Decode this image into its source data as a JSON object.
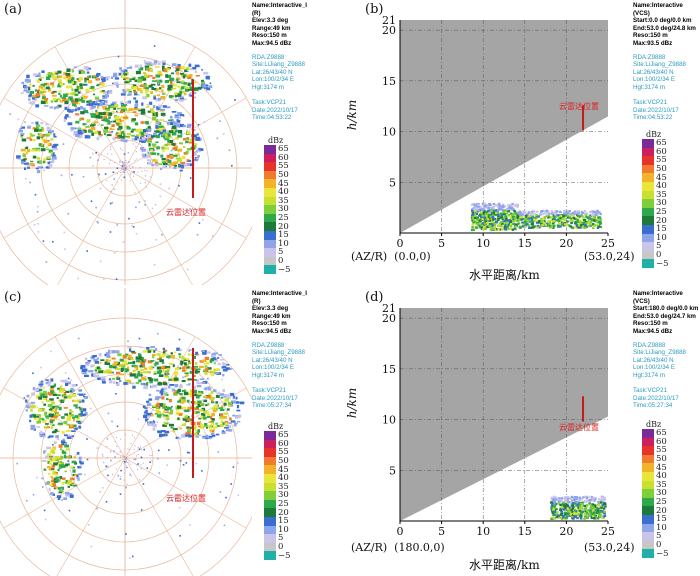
{
  "panels": [
    {
      "id": "a",
      "label": "(a)",
      "kind": "ppi",
      "marker_label": "云雷达位置",
      "info_black": [
        "Name:Interactive_I",
        "(R)",
        "Elev:3.3 deg",
        "Range:49 km",
        "Reso:150 m",
        "Max:94.5 dBz"
      ],
      "info_cyan": [
        "RDA:Z9888",
        "Site:LiJiang_Z9888",
        "Lat:26/43/40 N",
        "Lon:100/2/34 E",
        "Hgt:3174 m",
        "",
        "Task:VCP21",
        "Date:2022/10/17",
        "Time:04:53:22"
      ]
    },
    {
      "id": "b",
      "label": "(b)",
      "kind": "vcs",
      "marker_label": "云雷达位置",
      "info_black": [
        "Name:Interactive",
        "(VCS)",
        "Start:0.0 deg/0.0 km",
        "End:53.0 deg/24.8 km",
        "Reso:150 m",
        "Max:93.5 dBz"
      ],
      "info_cyan": [
        "RDA:Z9888",
        "Site:LiJiang_Z9888",
        "Lat:26/43/40 N",
        "Lon:100/2/34 E",
        "Hgt:3174 m",
        "",
        "Task:VCP21",
        "Date:2022/10/17",
        "Time:04:53:22"
      ],
      "ylabel": "h/km",
      "xlabel": "水平距离/km",
      "x_left_note": "(AZ/R)  (0.0,0)",
      "x_right_note": "(53.0,24)"
    },
    {
      "id": "c",
      "label": "(c)",
      "kind": "ppi",
      "marker_label": "云雷达位置",
      "info_black": [
        "Name:Interactive_I",
        "(R)",
        "Elev:3.3 deg",
        "Range:49 km",
        "Reso:150 m",
        "Max:94.5 dBz"
      ],
      "info_cyan": [
        "RDA:Z9888",
        "Site:LiJiang_Z9888",
        "Lat:26/43/40 N",
        "Lon:100/2/34 E",
        "Hgt:3174 m",
        "",
        "Task:VCP21",
        "Date:2022/10/17",
        "Time:05:27:34"
      ]
    },
    {
      "id": "d",
      "label": "(d)",
      "kind": "vcs",
      "marker_label": "云雷达位置",
      "info_black": [
        "Name:Interactive",
        "(VCS)",
        "Start:180.0 deg/0.0 km",
        "End:53.0 deg/24.7 km",
        "Reso:150 m",
        "Max:94.5 dBz"
      ],
      "info_cyan": [
        "RDA:Z9888",
        "Site:LiJiang_Z9888",
        "Lat:26/43/40 N",
        "Lon:100/2/34 E",
        "Hgt:3174 m",
        "",
        "Task:VCP21",
        "Date:2022/10/17",
        "Time:05:27:34"
      ],
      "ylabel": "h/km",
      "xlabel": "水平距离/km",
      "x_left_note": "(AZ/R)  (180.0,0)",
      "x_right_note": "(53.0,24)"
    }
  ],
  "legend": {
    "title": "dBz",
    "levels": [
      "65",
      "60",
      "55",
      "50",
      "45",
      "40",
      "35",
      "30",
      "25",
      "20",
      "15",
      "10",
      "5",
      "0",
      "−5"
    ],
    "colors": [
      "#7b2a9a",
      "#cc1f5e",
      "#e8332b",
      "#f07b2f",
      "#f2b329",
      "#eae53a",
      "#c8e02e",
      "#7fcf3d",
      "#2fa84a",
      "#1d7a3b",
      "#3a6fd0",
      "#8ea5ea",
      "#c9c4e8",
      "#c7c7c7",
      "#20b0a8"
    ]
  },
  "vcs_axes": {
    "x_ticks": [
      "0",
      "5",
      "10",
      "15",
      "20",
      "25"
    ],
    "y_ticks": [
      "5",
      "10",
      "15",
      "20",
      "21"
    ]
  },
  "colors": {
    "ring": "#e9b79a",
    "marker": "#c41a1a",
    "info_cyan": "#2a9bc0",
    "vcs_bg": "#a5a5a5"
  }
}
